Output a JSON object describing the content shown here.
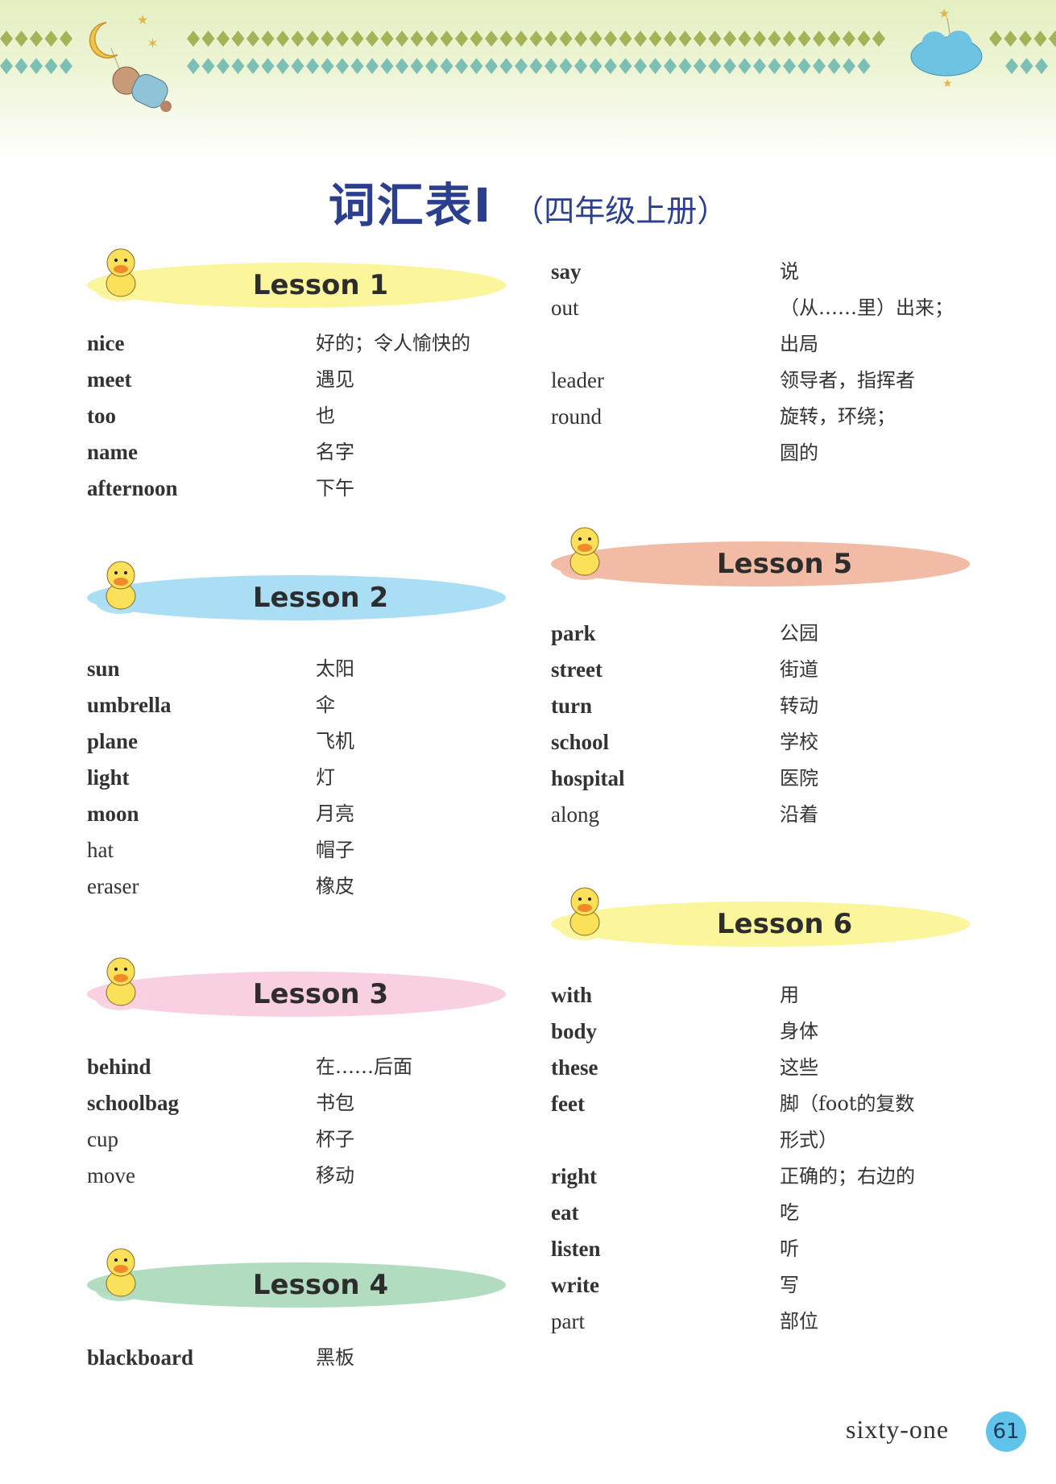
{
  "title": {
    "main": "词汇表Ⅰ",
    "sub": "（四年级上册）"
  },
  "colors": {
    "title": "#2b3f8e",
    "diamond_top": "#a4b258",
    "diamond_bottom": "#7dbfb4",
    "page_badge": "#5fc3ea"
  },
  "lessons": [
    {
      "label": "Lesson 1",
      "color": "#fbf59c",
      "entries": [
        {
          "en": "nice",
          "bold": true,
          "zh": [
            "好的；令人愉快的"
          ]
        },
        {
          "en": "meet",
          "bold": true,
          "zh": [
            "遇见"
          ]
        },
        {
          "en": "too",
          "bold": true,
          "zh": [
            "也"
          ]
        },
        {
          "en": "name",
          "bold": true,
          "zh": [
            "名字"
          ]
        },
        {
          "en": "afternoon",
          "bold": true,
          "zh": [
            "下午"
          ]
        }
      ]
    },
    {
      "label": "Lesson 2",
      "color": "#a9def5",
      "entries": [
        {
          "en": "sun",
          "bold": true,
          "zh": [
            "太阳"
          ]
        },
        {
          "en": "umbrella",
          "bold": true,
          "zh": [
            "伞"
          ]
        },
        {
          "en": "plane",
          "bold": true,
          "zh": [
            "飞机"
          ]
        },
        {
          "en": "light",
          "bold": true,
          "zh": [
            "灯"
          ]
        },
        {
          "en": "moon",
          "bold": true,
          "zh": [
            "月亮"
          ]
        },
        {
          "en": "hat",
          "bold": false,
          "zh": [
            "帽子"
          ]
        },
        {
          "en": "eraser",
          "bold": false,
          "zh": [
            "橡皮"
          ]
        }
      ]
    },
    {
      "label": "Lesson 3",
      "color": "#f8d0e1",
      "entries": [
        {
          "en": "behind",
          "bold": true,
          "zh": [
            "在……后面"
          ]
        },
        {
          "en": "schoolbag",
          "bold": true,
          "zh": [
            "书包"
          ]
        },
        {
          "en": "cup",
          "bold": false,
          "zh": [
            "杯子"
          ]
        },
        {
          "en": "move",
          "bold": false,
          "zh": [
            "移动"
          ]
        }
      ]
    },
    {
      "label": "Lesson 4",
      "color": "#b1dcc0",
      "entries": [
        {
          "en": "blackboard",
          "bold": true,
          "zh": [
            "黑板"
          ]
        },
        {
          "en": "say",
          "bold": true,
          "zh": [
            "说"
          ]
        },
        {
          "en": "out",
          "bold": false,
          "zh": [
            "（从……里）出来；",
            "出局"
          ]
        },
        {
          "en": "leader",
          "bold": false,
          "zh": [
            "领导者，指挥者"
          ]
        },
        {
          "en": "round",
          "bold": false,
          "zh": [
            "旋转，环绕；",
            "圆的"
          ]
        }
      ]
    },
    {
      "label": "Lesson 5",
      "color": "#f1bba6",
      "entries": [
        {
          "en": "park",
          "bold": true,
          "zh": [
            "公园"
          ]
        },
        {
          "en": "street",
          "bold": true,
          "zh": [
            "街道"
          ]
        },
        {
          "en": "turn",
          "bold": true,
          "zh": [
            "转动"
          ]
        },
        {
          "en": "school",
          "bold": true,
          "zh": [
            "学校"
          ]
        },
        {
          "en": "hospital",
          "bold": true,
          "zh": [
            "医院"
          ]
        },
        {
          "en": "along",
          "bold": false,
          "zh": [
            "沿着"
          ]
        }
      ]
    },
    {
      "label": "Lesson 6",
      "color": "#fbf59c",
      "entries": [
        {
          "en": "with",
          "bold": true,
          "zh": [
            "用"
          ]
        },
        {
          "en": "body",
          "bold": true,
          "zh": [
            "身体"
          ]
        },
        {
          "en": "these",
          "bold": true,
          "zh": [
            "这些"
          ]
        },
        {
          "en": "feet",
          "bold": true,
          "zh": [
            "脚（foot的复数",
            "形式）"
          ]
        },
        {
          "en": "right",
          "bold": true,
          "zh": [
            "正确的；右边的"
          ]
        },
        {
          "en": "eat",
          "bold": true,
          "zh": [
            "吃"
          ]
        },
        {
          "en": "listen",
          "bold": true,
          "zh": [
            "听"
          ]
        },
        {
          "en": "write",
          "bold": true,
          "zh": [
            "写"
          ]
        },
        {
          "en": "part",
          "bold": false,
          "zh": [
            "部位"
          ]
        }
      ]
    }
  ],
  "footer": {
    "page_word": "sixty-one",
    "page_number": "61"
  }
}
